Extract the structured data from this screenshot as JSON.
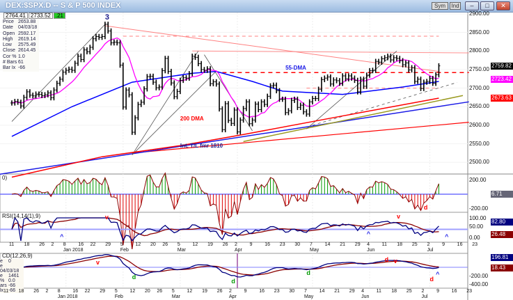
{
  "window": {
    "title": "DEX:$SPX.D -- S & P 500 INDEX",
    "buttons": [
      "Sym",
      "Ind"
    ],
    "minimize": "–",
    "restore": "□",
    "close": "✕"
  },
  "header_tabs": [
    "2764.41",
    "2733.52",
    ".21"
  ],
  "info": [
    {
      "k": "Price",
      "v": "2653.88"
    },
    {
      "k": "Date",
      "v": "04/03/18"
    },
    {
      "k": "Open",
      "v": "2592.17"
    },
    {
      "k": "High",
      "v": "2619.14"
    },
    {
      "k": "Low",
      "v": "2575.49"
    },
    {
      "k": "Close",
      "v": "2614.45"
    },
    {
      "k": "Cor %",
      "v": "1.0"
    },
    {
      "k": "# Bars",
      "v": "61"
    },
    {
      "k": "Bar Ix",
      "v": "-66"
    }
  ],
  "macd_info": [
    {
      "k": "e",
      "v": "0"
    },
    {
      "k": "e",
      "v": "04/03/18"
    },
    {
      "k": "e",
      "v": "1461"
    },
    {
      "k": "%",
      "v": "0.0"
    },
    {
      "k": "ars",
      "v": "-66"
    },
    {
      "k": "lx",
      "v": "-66"
    }
  ],
  "colors": {
    "bars": "#000000",
    "ma10": "#ff00ff",
    "ma55": "#0000ff",
    "dma200": "#ff0000",
    "trendline": "#1a1ae6",
    "olive": "#9a9a20",
    "up": "#009900",
    "down": "#dd0000",
    "rsi": "#000080",
    "signal": "#8b0000"
  },
  "price_axis": {
    "ticks": [
      2900,
      2850,
      2800,
      2750,
      2700,
      2650,
      2600,
      2550,
      2500
    ],
    "labels": [
      "2900.00",
      "2850.00",
      "2800.00",
      "2750.00",
      "2700.00",
      "2650.00",
      "2600.00",
      "2550.00",
      "2500.00"
    ]
  },
  "price_badges": [
    {
      "v": "2759.82",
      "bg": "#000000",
      "fg": "#ffffff",
      "p": 2759.82
    },
    {
      "v": "2723.42",
      "bg": "#ff00ff",
      "fg": "#ffffff",
      "p": 2723.42
    },
    {
      "v": "2673.63",
      "bg": "#ff0000",
      "fg": "#ffffff",
      "p": 2673.63
    }
  ],
  "chart_data": {
    "type": "ohlc",
    "closes": [
      2660,
      2664,
      2662,
      2652,
      2675,
      2690,
      2681,
      2679,
      2684,
      2683,
      2680,
      2682,
      2687,
      2674,
      2695,
      2713,
      2724,
      2743,
      2748,
      2751,
      2748,
      2767,
      2786,
      2777,
      2803,
      2798,
      2810,
      2833,
      2839,
      2837,
      2839,
      2872,
      2854,
      2822,
      2824,
      2822,
      2762,
      2649,
      2695,
      2682,
      2581,
      2620,
      2656,
      2662,
      2698,
      2731,
      2732,
      2716,
      2701,
      2703,
      2747,
      2780,
      2745,
      2714,
      2677,
      2691,
      2721,
      2728,
      2727,
      2739,
      2786,
      2783,
      2766,
      2750,
      2748,
      2752,
      2712,
      2717,
      2711,
      2644,
      2588,
      2658,
      2613,
      2605,
      2641,
      2582,
      2614,
      2645,
      2663,
      2604,
      2614,
      2657,
      2642,
      2663,
      2656,
      2678,
      2706,
      2708,
      2693,
      2670,
      2670,
      2634,
      2639,
      2667,
      2670,
      2648,
      2654,
      2636,
      2630,
      2663,
      2672,
      2672,
      2697,
      2723,
      2727,
      2730,
      2711,
      2722,
      2720,
      2713,
      2733,
      2725,
      2733,
      2727,
      2721,
      2690,
      2724,
      2705,
      2735,
      2747,
      2748,
      2772,
      2770,
      2779,
      2782,
      2786,
      2776,
      2782,
      2780,
      2774,
      2763,
      2768,
      2749,
      2755,
      2718,
      2724,
      2699,
      2716,
      2718,
      2726,
      2713,
      2736,
      2760
    ],
    "ma55": [
      [
        0,
        2570
      ],
      [
        20,
        2650
      ],
      [
        40,
        2716
      ],
      [
        60,
        2740
      ],
      [
        68,
        2745
      ],
      [
        80,
        2718
      ],
      [
        90,
        2692
      ],
      [
        110,
        2683
      ],
      [
        130,
        2703
      ],
      [
        142,
        2718
      ]
    ],
    "dma200": [
      [
        0,
        2460
      ],
      [
        30,
        2515
      ],
      [
        56,
        2545
      ],
      [
        77,
        2575
      ],
      [
        110,
        2625
      ],
      [
        142,
        2673
      ]
    ],
    "lines": [
      {
        "name": "downtrend-line",
        "c": "#ff8080",
        "w": 1,
        "d": "",
        "pts": [
          [
            31,
            2868
          ],
          [
            142,
            2745
          ]
        ]
      },
      {
        "name": "resistance-2840",
        "c": "#ff8080",
        "w": 1,
        "d": "5,4",
        "pts": [
          [
            37,
            2840
          ],
          [
            142,
            2840
          ]
        ]
      },
      {
        "name": "resistance-2795",
        "c": "#ff9090",
        "w": 1,
        "d": "",
        "pts": [
          [
            60,
            2800
          ],
          [
            152,
            2795
          ]
        ]
      },
      {
        "name": "resistance-2742",
        "c": "#ff0000",
        "w": 1.5,
        "d": "6,5",
        "pts": [
          [
            70,
            2742
          ],
          [
            152,
            2742
          ]
        ]
      },
      {
        "name": "support-2700",
        "c": "#ff8080",
        "w": 1,
        "d": "5,4",
        "pts": [
          [
            98,
            2700
          ],
          [
            142,
            2700
          ]
        ]
      },
      {
        "name": "lower-red-line",
        "c": "#ff0000",
        "w": 1.2,
        "d": "",
        "pts": [
          [
            40,
            2525
          ],
          [
            152,
            2608
          ]
        ]
      },
      {
        "name": "intermediate-trendline",
        "c": "#1a1ae6",
        "w": 1.5,
        "d": "",
        "pts": [
          [
            -4,
            2468
          ],
          [
            152,
            2663
          ]
        ]
      },
      {
        "name": "olive-trendline",
        "c": "#9a9a20",
        "w": 1.5,
        "d": "",
        "pts": [
          [
            77,
            2556
          ],
          [
            150,
            2680
          ]
        ]
      },
      {
        "name": "gray-line-1",
        "c": "#555",
        "w": 0.8,
        "d": "",
        "pts": [
          [
            0,
            2610
          ],
          [
            31,
            2872
          ]
        ]
      },
      {
        "name": "gray-line-2",
        "c": "#555",
        "w": 0.8,
        "d": "",
        "pts": [
          [
            40,
            2520
          ],
          [
            62,
            2800
          ]
        ]
      },
      {
        "name": "gray-line-3",
        "c": "#555",
        "w": 0.8,
        "d": "",
        "pts": [
          [
            40,
            2520
          ],
          [
            68,
            2746
          ]
        ]
      },
      {
        "name": "gray-line-4",
        "c": "#555",
        "w": 0.8,
        "d": "",
        "pts": [
          [
            64,
            2790
          ],
          [
            80,
            2585
          ]
        ]
      },
      {
        "name": "gray-line-5",
        "c": "#555",
        "w": 0.8,
        "d": "",
        "pts": [
          [
            98,
            2590
          ],
          [
            128,
            2800
          ]
        ]
      },
      {
        "name": "gray-line-6",
        "c": "#555",
        "w": 0.8,
        "d": "4,4",
        "pts": [
          [
            100,
            2600
          ],
          [
            148,
            2715
          ]
        ]
      }
    ],
    "annotations": [
      {
        "t": "3",
        "c": "#1a1a8a",
        "i": 31,
        "p": 2885,
        "s": 11
      },
      {
        "t": "55-DMA",
        "c": "#1a1ae6",
        "i": 91,
        "p": 2750,
        "s": 8
      },
      {
        "t": "200 DMA",
        "c": "#ff0000",
        "i": 56,
        "p": 2613,
        "s": 8
      },
      {
        "t": "Int. T/L fmr 1810",
        "c": "#1a1a8a",
        "i": 56,
        "p": 2540,
        "s": 8
      }
    ]
  },
  "momentum": {
    "label": "0)",
    "axis": [
      "200.00",
      "-200.00"
    ],
    "value": "6.71",
    "marks": [
      {
        "t": "d",
        "c": "#ff0000"
      }
    ]
  },
  "rsi": {
    "label": "RSI(14,14(1),9)",
    "axis": [
      "100.00",
      "50.00",
      "0.00"
    ],
    "value": "82.80",
    "signal": "26.48"
  },
  "macd": {
    "label": "CD(12,26,9)",
    "axis": [
      "-200.00",
      "-400.00"
    ],
    "value": "196.81",
    "signal": "18.43"
  },
  "date_axis": {
    "days": [
      [
        "11",
        0
      ],
      [
        "18",
        5
      ],
      [
        "26",
        10
      ],
      [
        "2",
        14
      ],
      [
        "8",
        18
      ],
      [
        "16",
        23
      ],
      [
        "22",
        27
      ],
      [
        "29",
        32
      ],
      [
        "5",
        37
      ],
      [
        "12",
        42
      ],
      [
        "20",
        47
      ],
      [
        "26",
        51
      ],
      [
        "5",
        56
      ],
      [
        "12",
        61
      ],
      [
        "19",
        66
      ],
      [
        "26",
        71
      ],
      [
        "2",
        75
      ],
      [
        "9",
        80
      ],
      [
        "16",
        85
      ],
      [
        "23",
        90
      ],
      [
        "30",
        95
      ],
      [
        "7",
        100
      ],
      [
        "14",
        105
      ],
      [
        "21",
        110
      ],
      [
        "29",
        115
      ],
      [
        "4",
        119
      ],
      [
        "11",
        124
      ],
      [
        "18",
        129
      ],
      [
        "25",
        134
      ],
      [
        "2",
        139
      ],
      [
        "9",
        144
      ],
      [
        "16",
        149
      ],
      [
        "23",
        154
      ]
    ],
    "months": [
      [
        "Jan 2018",
        18
      ],
      [
        "Feb",
        37
      ],
      [
        "Mar",
        56
      ],
      [
        "Apr",
        75
      ],
      [
        "May",
        100
      ],
      [
        "Jun",
        119
      ],
      [
        "Jul",
        139
      ]
    ]
  },
  "indicator_marks": [
    {
      "t": "v",
      "c": "#ff0000",
      "panel": "rsi",
      "i": 31,
      "y": 0.1
    },
    {
      "t": "^",
      "c": "#1a1ae6",
      "panel": "rsi",
      "i": 16,
      "y": 0.9
    },
    {
      "t": "^",
      "c": "#1a1ae6",
      "panel": "rsi",
      "i": 118,
      "y": 0.8
    },
    {
      "t": "v",
      "c": "#ff0000",
      "panel": "rsi",
      "i": 128,
      "y": 0.05
    },
    {
      "t": "^",
      "c": "#1a1ae6",
      "panel": "rsi",
      "i": 144,
      "y": 0.9
    },
    {
      "t": "v",
      "c": "#ff0000",
      "panel": "macd",
      "i": 28,
      "y": 0.22
    },
    {
      "t": "d",
      "c": "#009900",
      "panel": "macd",
      "i": 40,
      "y": 0.72
    },
    {
      "t": "d",
      "c": "#009900",
      "panel": "macd",
      "i": 73,
      "y": 0.85
    },
    {
      "t": "d",
      "c": "#009900",
      "panel": "macd",
      "i": 98,
      "y": 0.58
    },
    {
      "t": "d",
      "c": "#ff0000",
      "panel": "macd",
      "i": 124,
      "y": 0.12
    },
    {
      "t": "v",
      "c": "#ff0000",
      "panel": "macd",
      "i": 127,
      "y": 0.16
    },
    {
      "t": "d",
      "c": "#ff0000",
      "panel": "macd",
      "i": 139,
      "y": 0.78
    },
    {
      "t": "^",
      "c": "#1a1ae6",
      "panel": "macd",
      "i": 141,
      "y": 0.62
    }
  ]
}
